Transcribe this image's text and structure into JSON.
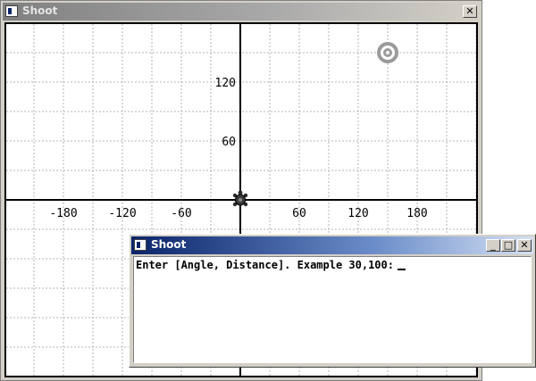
{
  "back_window": {
    "title": "Shoot",
    "close_glyph": "✕",
    "icon": "app-window-icon"
  },
  "front_window": {
    "title": "Shoot",
    "minimize_glyph": "_",
    "maximize_glyph": "□",
    "close_glyph": "✕",
    "icon": "app-window-icon",
    "prompt": "Enter [Angle, Distance]. Example 30,100:"
  },
  "chart_data": {
    "type": "scatter",
    "title": "",
    "xlabel": "",
    "ylabel": "",
    "xlim": [
      -240,
      240
    ],
    "ylim": [
      -180,
      180
    ],
    "grid_step": 30,
    "x_tick_labels": [
      "-180",
      "-120",
      "-60",
      "60",
      "120",
      "180"
    ],
    "x_tick_values": [
      -180,
      -120,
      -60,
      60,
      120,
      180
    ],
    "y_tick_labels": [
      "60",
      "120"
    ],
    "y_tick_values": [
      60,
      120
    ],
    "turtle": {
      "x": 0,
      "y": 0,
      "icon": "turtle-icon"
    },
    "target": {
      "x": 150,
      "y": 150,
      "icon": "target-icon"
    }
  }
}
